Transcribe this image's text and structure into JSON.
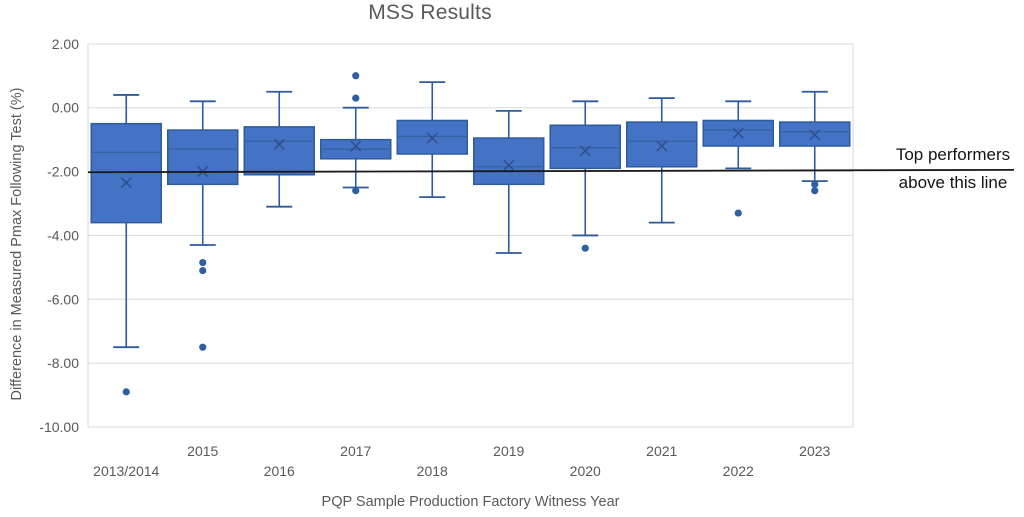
{
  "annotation": {
    "line1": "Top performers",
    "line2": "above this line"
  },
  "colors": {
    "background": "#FFFFFF",
    "box_fill": "#4472C4",
    "box_border": "#2E5B9C",
    "whisker": "#2E5B9C",
    "median_line": "#35619F",
    "mean_marker": "#2B4C86",
    "outlier": "#2E5FA3",
    "gridline": "#D9D9D9",
    "axis_text": "#595959",
    "title_text": "#595959",
    "reference_line": "#1A1A1A"
  },
  "chart_data": {
    "type": "box",
    "title": "MSS Results",
    "xlabel": "PQP Sample Production Factory Witness Year",
    "ylabel": "Difference in Measured Pmax Following Test (%)",
    "ylim": [
      -10,
      2
    ],
    "grid": true,
    "legend": false,
    "yticks": [
      {
        "value": 2,
        "label": "2.00"
      },
      {
        "value": 0,
        "label": "0.00"
      },
      {
        "value": -2,
        "label": "-2.00"
      },
      {
        "value": -4,
        "label": "-4.00"
      },
      {
        "value": -6,
        "label": "-6.00"
      },
      {
        "value": -8,
        "label": "-8.00"
      },
      {
        "value": -10,
        "label": "-10.00"
      }
    ],
    "categories": [
      "2013/2014",
      "2015",
      "2016",
      "2017",
      "2018",
      "2019",
      "2020",
      "2021",
      "2022",
      "2023"
    ],
    "reference_line": {
      "value": -2.0,
      "label": "Top performers above this line"
    },
    "boxes": [
      {
        "category": "2013/2014",
        "whisker_high": 0.4,
        "q3": -0.5,
        "median": -1.4,
        "mean": -2.35,
        "q1": -3.6,
        "whisker_low": -7.5,
        "outliers": [
          -8.9
        ]
      },
      {
        "category": "2015",
        "whisker_high": 0.2,
        "q3": -0.7,
        "median": -1.3,
        "mean": -2.0,
        "q1": -2.4,
        "whisker_low": -4.3,
        "outliers": [
          -4.85,
          -5.1,
          -7.5
        ]
      },
      {
        "category": "2016",
        "whisker_high": 0.5,
        "q3": -0.6,
        "median": -1.05,
        "mean": -1.15,
        "q1": -2.1,
        "whisker_low": -3.1,
        "outliers": []
      },
      {
        "category": "2017",
        "whisker_high": 0.0,
        "q3": -1.0,
        "median": -1.3,
        "mean": -1.2,
        "q1": -1.6,
        "whisker_low": -2.5,
        "outliers": [
          1.0,
          0.3,
          -2.6
        ]
      },
      {
        "category": "2018",
        "whisker_high": 0.8,
        "q3": -0.4,
        "median": -0.9,
        "mean": -0.95,
        "q1": -1.45,
        "whisker_low": -2.8,
        "outliers": []
      },
      {
        "category": "2019",
        "whisker_high": -0.1,
        "q3": -0.95,
        "median": -1.85,
        "mean": -1.8,
        "q1": -2.4,
        "whisker_low": -4.55,
        "outliers": []
      },
      {
        "category": "2020",
        "whisker_high": 0.2,
        "q3": -0.55,
        "median": -1.25,
        "mean": -1.35,
        "q1": -1.9,
        "whisker_low": -4.0,
        "outliers": [
          -4.4
        ]
      },
      {
        "category": "2021",
        "whisker_high": 0.3,
        "q3": -0.45,
        "median": -1.05,
        "mean": -1.2,
        "q1": -1.85,
        "whisker_low": -3.6,
        "outliers": []
      },
      {
        "category": "2022",
        "whisker_high": 0.2,
        "q3": -0.4,
        "median": -0.7,
        "mean": -0.8,
        "q1": -1.2,
        "whisker_low": -1.9,
        "outliers": [
          -3.3
        ]
      },
      {
        "category": "2023",
        "whisker_high": 0.5,
        "q3": -0.45,
        "median": -0.75,
        "mean": -0.85,
        "q1": -1.2,
        "whisker_low": -2.3,
        "outliers": [
          -2.4,
          -2.6
        ]
      }
    ]
  }
}
